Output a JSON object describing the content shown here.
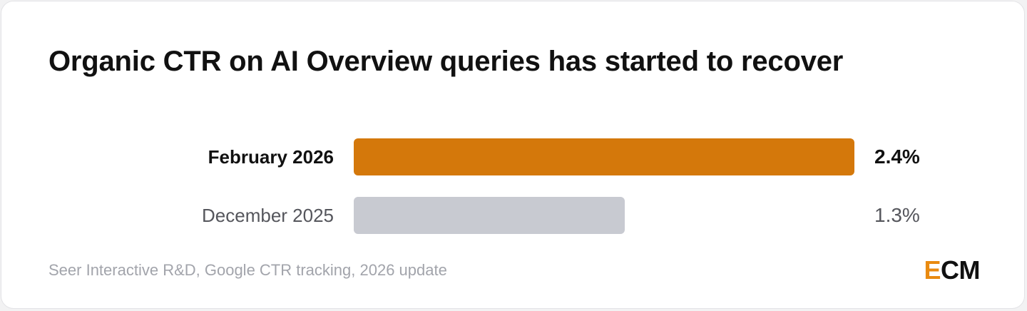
{
  "chart_data": {
    "type": "bar",
    "orientation": "horizontal",
    "title": "Organic CTR on AI Overview queries has started to recover",
    "categories": [
      "February 2026",
      "December 2025"
    ],
    "values": [
      2.4,
      1.3
    ],
    "value_labels": [
      "2.4%",
      "1.3%"
    ],
    "unit": "%",
    "xlim": [
      0,
      2.4
    ],
    "grid": false,
    "legend": "none",
    "colors": [
      "#d4780b",
      "#c8cad1"
    ],
    "source": "Seer Interactive R&D, Google CTR tracking, 2026 update"
  },
  "brand": {
    "logo_first": "E",
    "logo_rest": "CM",
    "logo_first_color": "#e98a10"
  }
}
